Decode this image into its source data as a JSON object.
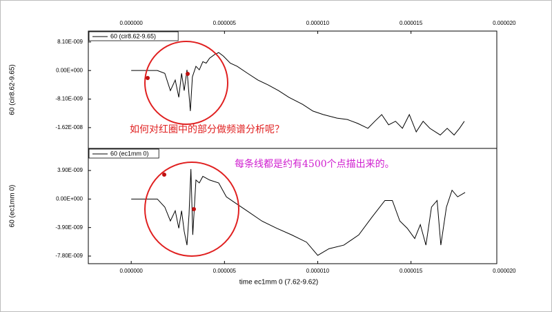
{
  "chart_data": [
    {
      "type": "line",
      "ylabel": "60 (cir8.62-9.65)",
      "xaxis_position": "top",
      "xlim": [
        -2.3e-06,
        1.96e-05
      ],
      "ylim": [
        -2.21e-08,
        1.12e-08
      ],
      "xticks": [
        {
          "value": 0,
          "label": "0.000000"
        },
        {
          "value": 5e-06,
          "label": "0.000005"
        },
        {
          "value": 1e-05,
          "label": "0.000010"
        },
        {
          "value": 1.5e-05,
          "label": "0.000015"
        },
        {
          "value": 2e-05,
          "label": "0.000020"
        }
      ],
      "yticks": [
        {
          "value": 8.1e-09,
          "label": "8.10E-009"
        },
        {
          "value": 0,
          "label": "0.00E+000"
        },
        {
          "value": -8.1e-09,
          "label": "-8.10E-009"
        },
        {
          "value": -1.62e-08,
          "label": "-1.62E-008"
        }
      ],
      "x": [
        0,
        1.4e-06,
        1.8e-06,
        2.1e-06,
        2.36e-06,
        2.55e-06,
        2.7e-06,
        2.84e-06,
        2.99e-06,
        3.17e-06,
        3.28e-06,
        3.47e-06,
        3.65e-06,
        3.84e-06,
        4.02e-06,
        4.2e-06,
        4.46e-06,
        4.69e-06,
        4.94e-06,
        5.31e-06,
        5.68e-06,
        6.24e-06,
        6.79e-06,
        7.34e-06,
        7.9e-06,
        8.45e-06,
        9.19e-06,
        9.74e-06,
        1.03e-05,
        1.103e-05,
        1.159e-05,
        1.214e-05,
        1.269e-05,
        1.306e-05,
        1.343e-05,
        1.38e-05,
        1.417e-05,
        1.454e-05,
        1.491e-05,
        1.528e-05,
        1.565e-05,
        1.601e-05,
        1.657e-05,
        1.694e-05,
        1.731e-05,
        1.76e-05,
        1.786e-05
      ],
      "series": [
        {
          "name": "60 (cir8.62-9.65)",
          "color": "#000000",
          "values": [
            0,
            0,
            -8e-10,
            -5.7e-09,
            -2.7e-09,
            -7.6e-09,
            -8e-10,
            -5.7e-09,
            2e-10,
            -1.15e-08,
            -1.8e-09,
            1.2e-09,
            2e-10,
            2.5e-09,
            2.1e-09,
            3.5e-09,
            4.5e-09,
            5.1e-09,
            4.1e-09,
            2.1e-09,
            1.2e-09,
            -8e-10,
            -2.7e-09,
            -4.1e-09,
            -5.7e-09,
            -7.6e-09,
            -9.6e-09,
            -1.15e-08,
            -1.25e-08,
            -1.35e-08,
            -1.39e-08,
            -1.5e-08,
            -1.64e-08,
            -1.44e-08,
            -1.25e-08,
            -1.54e-08,
            -1.44e-08,
            -1.64e-08,
            -1.25e-08,
            -1.74e-08,
            -1.44e-08,
            -1.64e-08,
            -1.83e-08,
            -1.64e-08,
            -1.83e-08,
            -1.64e-08,
            -1.44e-08
          ]
        }
      ],
      "annotations": [
        "如何对红圈中的部分做频谱分析呢？"
      ]
    },
    {
      "type": "line",
      "ylabel": "60 (ec1mm 0)",
      "xlabel": "time ec1mm 0 (7.62-9.62)",
      "xaxis_position": "bottom",
      "xlim": [
        -2.3e-06,
        1.96e-05
      ],
      "ylim": [
        -8.84e-09,
        6.92e-09
      ],
      "xticks": [
        {
          "value": 0,
          "label": "0.000000"
        },
        {
          "value": 5e-06,
          "label": "0.000005"
        },
        {
          "value": 1e-05,
          "label": "0.000010"
        },
        {
          "value": 1.5e-05,
          "label": "0.000015"
        },
        {
          "value": 2e-05,
          "label": "0.000020"
        }
      ],
      "yticks": [
        {
          "value": 3.9e-09,
          "label": "3.90E-009"
        },
        {
          "value": 0,
          "label": "0.00E+000"
        },
        {
          "value": -3.9e-09,
          "label": "-3.90E-009"
        },
        {
          "value": -7.8e-09,
          "label": "-7.80E-009"
        }
      ],
      "x": [
        0,
        1.4e-06,
        1.8e-06,
        2.1e-06,
        2.36e-06,
        2.55e-06,
        2.7e-06,
        2.84e-06,
        2.99e-06,
        3.1e-06,
        3.2e-06,
        3.3e-06,
        3.47e-06,
        3.65e-06,
        3.84e-06,
        4.2e-06,
        4.69e-06,
        5.1e-06,
        5.5e-06,
        6.2e-06,
        7e-06,
        7.8e-06,
        8.6e-06,
        9.4e-06,
        1e-05,
        1.06e-05,
        1.14e-05,
        1.22e-05,
        1.29e-05,
        1.36e-05,
        1.4e-05,
        1.44e-05,
        1.48e-05,
        1.52e-05,
        1.55e-05,
        1.58e-05,
        1.61e-05,
        1.64e-05,
        1.66e-05,
        1.69e-05,
        1.72e-05,
        1.75e-05,
        1.79e-05
      ],
      "series": [
        {
          "name": "60 (ec1mm 0)",
          "color": "#000000",
          "values": [
            0,
            0,
            -1.1e-09,
            -3e-09,
            -1.6e-09,
            -4e-09,
            -1.6e-09,
            -4.4e-09,
            -6.3e-09,
            -2.1e-09,
            4.1e-09,
            -4.9e-09,
            2.6e-09,
            2.2e-09,
            3.1e-09,
            2.6e-09,
            2.2e-09,
            3e-10,
            -4e-10,
            -1.6e-09,
            -3e-09,
            -4e-09,
            -4.9e-09,
            -5.9e-09,
            -7.7e-09,
            -6.8e-09,
            -6.3e-09,
            -4.9e-09,
            -2.5e-09,
            -2e-10,
            -2e-10,
            -3e-09,
            -4e-09,
            -5.4e-09,
            -3.5e-09,
            -6.3e-09,
            -1.1e-09,
            -2e-10,
            -6.3e-09,
            -1.1e-09,
            1.2e-09,
            3e-10,
            9e-10
          ]
        }
      ],
      "annotations": [
        "每条线都是约有4500个点描出来的。"
      ]
    }
  ]
}
